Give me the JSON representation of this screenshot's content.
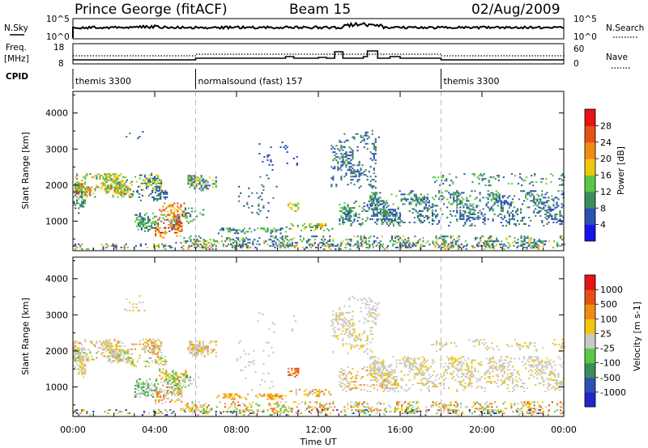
{
  "header": {
    "title": "Prince George (fitACF)",
    "beam": "Beam 15",
    "date": "02/Aug/2009"
  },
  "top_panels": {
    "nsky_label": "N.Sky",
    "nsky_ticks": [
      "10^5",
      "10^0"
    ],
    "nsearch_label": "N.Search",
    "nsearch_ticks": [
      "10^5",
      "10^0"
    ],
    "freq_label": "Freq.",
    "freq_unit": "[MHz]",
    "freq_ticks": [
      "18",
      "8"
    ],
    "nave_label": "Nave",
    "nave_ticks": [
      "60",
      "0"
    ],
    "cpid_label": "CPID",
    "cpid_segments": [
      {
        "label": "themis 3300",
        "start": 0,
        "end": 6
      },
      {
        "label": "normalsound (fast) 157",
        "start": 6,
        "end": 18
      },
      {
        "label": "themis 3300",
        "start": 18,
        "end": 24
      }
    ]
  },
  "chart_data": [
    {
      "type": "heatmap",
      "quantity": "Power",
      "ylabel": "Slant Range [km]",
      "xlim": [
        0,
        24
      ],
      "ylim": [
        180,
        4600
      ],
      "yticks": [
        1000,
        2000,
        3000,
        4000
      ],
      "colorbar": {
        "label": "Power [dB]",
        "ticks": [
          "4",
          "8",
          "12",
          "16",
          "20",
          "24",
          "28"
        ],
        "colors": [
          "#1414e6",
          "#2d50b4",
          "#3c8c5a",
          "#5ac846",
          "#f0c80a",
          "#f08c14",
          "#e65014",
          "#e61414"
        ]
      }
    },
    {
      "type": "heatmap",
      "quantity": "Velocity",
      "ylabel": "Slant Range [km]",
      "xlabel": "Time UT",
      "xlim": [
        0,
        24
      ],
      "ylim": [
        180,
        4600
      ],
      "yticks": [
        1000,
        2000,
        3000,
        4000
      ],
      "xticks": [
        "00:00",
        "04:00",
        "08:00",
        "12:00",
        "16:00",
        "20:00",
        "00:00"
      ],
      "colorbar": {
        "label": "Velocity [m s-1]",
        "ticks": [
          "1000",
          "500",
          "100",
          "25",
          "-25",
          "-100",
          "-500",
          "-1000"
        ],
        "colors": [
          "#1e28c8",
          "#2d50b4",
          "#3c8c5a",
          "#5ac846",
          "#c8c8c8",
          "#f0c80a",
          "#f08c14",
          "#e65014",
          "#e61414"
        ]
      }
    }
  ]
}
